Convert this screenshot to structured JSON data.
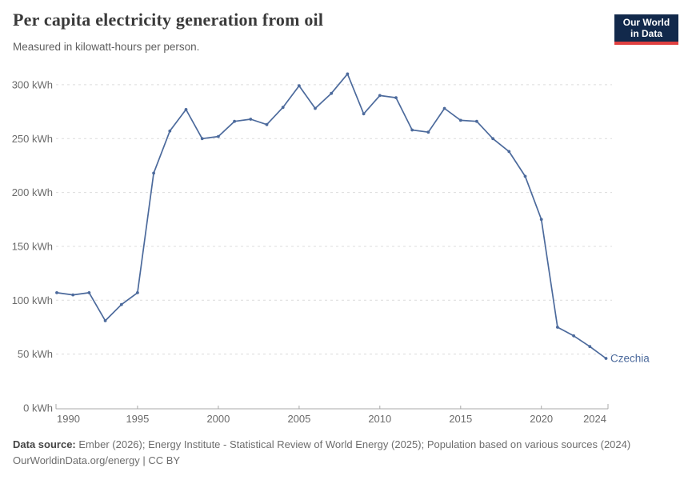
{
  "header": {
    "title": "Per capita electricity generation from oil",
    "subtitle": "Measured in kilowatt-hours per person.",
    "logo": {
      "line1": "Our World",
      "line2": "in Data"
    }
  },
  "chart_data": {
    "type": "line",
    "title": "Per capita electricity generation from oil",
    "ylabel": "kilowatt-hours per person",
    "ytick_suffix": " kWh",
    "x": [
      1990,
      1991,
      1992,
      1993,
      1994,
      1995,
      1996,
      1997,
      1998,
      1999,
      2000,
      2001,
      2002,
      2003,
      2004,
      2005,
      2006,
      2007,
      2008,
      2009,
      2010,
      2011,
      2012,
      2013,
      2014,
      2015,
      2016,
      2017,
      2018,
      2019,
      2020,
      2021,
      2022,
      2023,
      2024
    ],
    "series": [
      {
        "name": "Czechia",
        "color": "#4C6A9C",
        "values": [
          107,
          105,
          107,
          81,
          96,
          107,
          218,
          257,
          277,
          250,
          252,
          266,
          268,
          263,
          279,
          299,
          278,
          292,
          310,
          273,
          290,
          288,
          258,
          256,
          278,
          267,
          266,
          250,
          238,
          215,
          175,
          75,
          67,
          57,
          46
        ]
      }
    ],
    "yticks": [
      0,
      50,
      100,
      150,
      200,
      250,
      300
    ],
    "xticks": [
      1990,
      1995,
      2000,
      2005,
      2010,
      2015,
      2020,
      2024
    ],
    "ylim": [
      0,
      310
    ],
    "xlim": [
      1990,
      2024
    ],
    "grid": "horizontal-dashed",
    "legend_position": "end-of-line"
  },
  "footer": {
    "source_label": "Data source:",
    "source_text": "Ember (2026); Energy Institute - Statistical Review of World Energy (2025); Population based on various sources (2024)",
    "license": "OurWorldinData.org/energy | CC BY"
  },
  "colors": {
    "line": "#4C6A9C",
    "logo_bg": "#12294b",
    "logo_accent": "#e04040",
    "grid": "#dcdcdc",
    "axis": "#a8a8a8",
    "tick_text": "#6b6b6b"
  }
}
